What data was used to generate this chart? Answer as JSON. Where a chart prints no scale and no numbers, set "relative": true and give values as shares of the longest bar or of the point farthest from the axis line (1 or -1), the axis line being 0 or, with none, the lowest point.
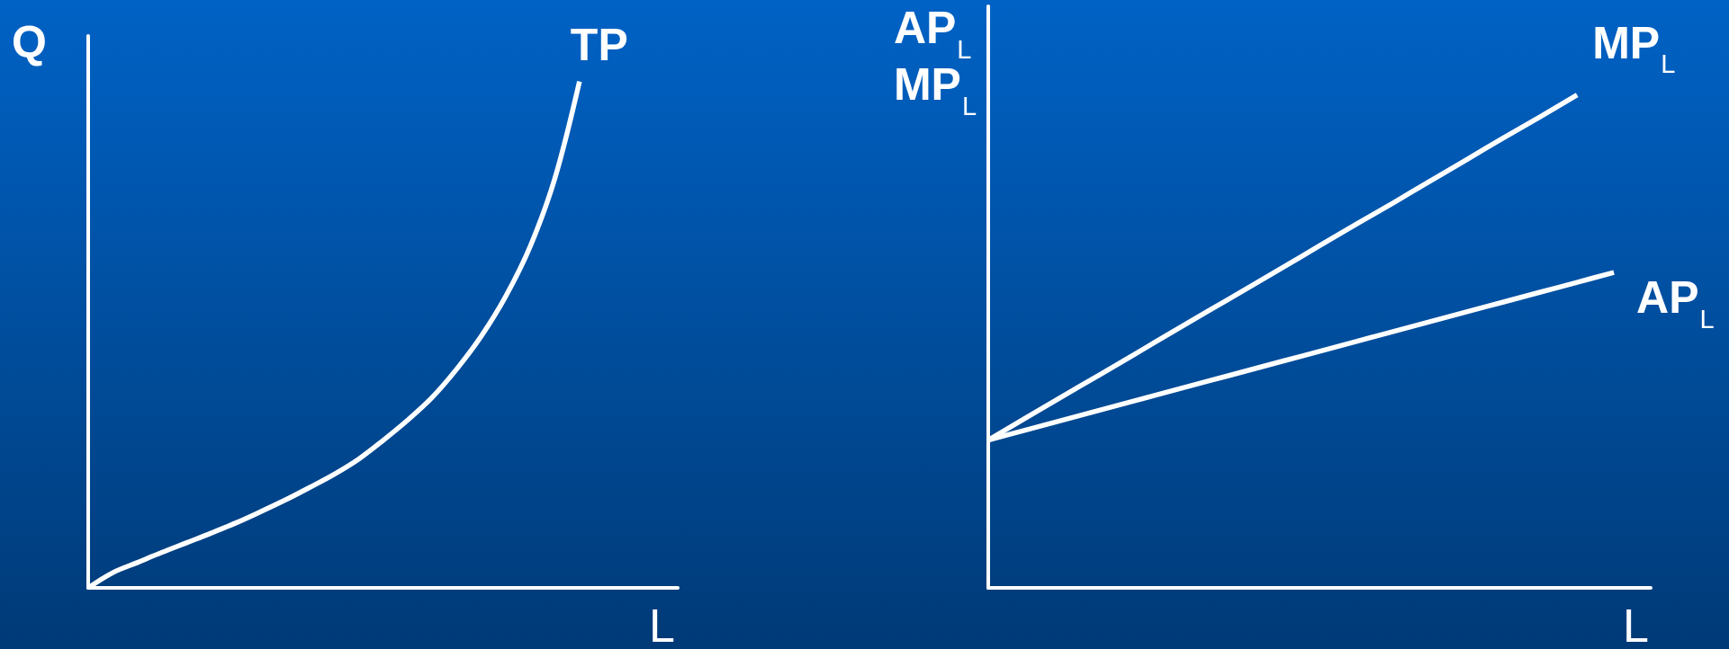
{
  "chart_data": [
    {
      "type": "line",
      "relative": true,
      "xlabel": "L",
      "ylabel": "Q",
      "categories": [
        null,
        null,
        null,
        null,
        null,
        null,
        null,
        null,
        null,
        null,
        null,
        null,
        null,
        null,
        null,
        null,
        null,
        null,
        null,
        null,
        null,
        null,
        null,
        null,
        null
      ],
      "series": [
        {
          "name": "TP",
          "color": "#ffffff",
          "values": [
            0,
            0.03,
            0.05,
            0.07,
            0.089,
            0.108,
            0.128,
            0.15,
            0.173,
            0.198,
            0.224,
            0.254,
            0.291,
            0.331,
            0.376,
            0.432,
            0.497,
            0.576,
            0.675,
            0.809,
            1,
            null,
            null,
            null,
            null
          ]
        }
      ]
    },
    {
      "type": "line",
      "relative": true,
      "xlabel": "L",
      "ylabel": "AP$_{L}$\nMP$_{L}$",
      "categories": [
        null,
        null,
        null,
        null,
        null,
        null,
        null,
        null,
        null,
        null,
        null,
        null,
        null,
        null,
        null,
        null,
        null,
        null,
        null
      ],
      "series": [
        {
          "name": "MP$_{L}$",
          "color": "#ffffff",
          "values": [
            0.3,
            0.344,
            0.388,
            0.431,
            0.475,
            0.519,
            0.563,
            0.606,
            0.65,
            0.694,
            0.738,
            0.781,
            0.825,
            0.869,
            0.913,
            0.956,
            1,
            null,
            null
          ]
        },
        {
          "name": "AP$_{L}$",
          "color": "#ffffff",
          "values": [
            0.3,
            0.32,
            0.34,
            0.36,
            0.38,
            0.4,
            0.42,
            0.44,
            0.46,
            0.48,
            0.5,
            0.52,
            0.54,
            0.56,
            0.58,
            0.6,
            0.62,
            0.64,
            null
          ]
        }
      ]
    }
  ]
}
